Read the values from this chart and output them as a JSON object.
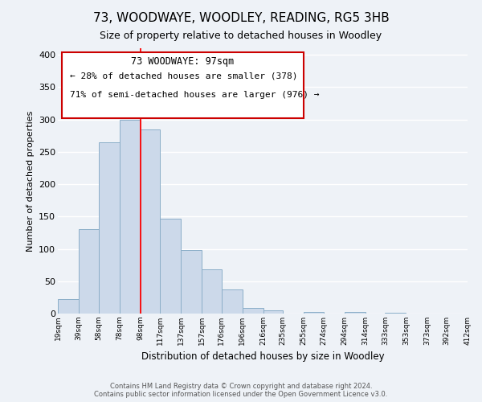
{
  "title": "73, WOODWAYE, WOODLEY, READING, RG5 3HB",
  "subtitle": "Size of property relative to detached houses in Woodley",
  "xlabel": "Distribution of detached houses by size in Woodley",
  "ylabel": "Number of detached properties",
  "bin_labels": [
    "19sqm",
    "39sqm",
    "58sqm",
    "78sqm",
    "98sqm",
    "117sqm",
    "137sqm",
    "157sqm",
    "176sqm",
    "196sqm",
    "216sqm",
    "235sqm",
    "255sqm",
    "274sqm",
    "294sqm",
    "314sqm",
    "333sqm",
    "353sqm",
    "373sqm",
    "392sqm",
    "412sqm"
  ],
  "bar_values": [
    22,
    130,
    265,
    300,
    285,
    147,
    98,
    68,
    37,
    9,
    5,
    0,
    3,
    0,
    2,
    0,
    1,
    0,
    0,
    0
  ],
  "bar_color": "#ccd9ea",
  "bar_edge_color": "#8baec8",
  "property_line_x": 98,
  "ylim": [
    0,
    410
  ],
  "yticks": [
    0,
    50,
    100,
    150,
    200,
    250,
    300,
    350,
    400
  ],
  "annotation_text_line1": "73 WOODWAYE: 97sqm",
  "annotation_text_line2": "← 28% of detached houses are smaller (378)",
  "annotation_text_line3": "71% of semi-detached houses are larger (976) →",
  "footer_line1": "Contains HM Land Registry data © Crown copyright and database right 2024.",
  "footer_line2": "Contains public sector information licensed under the Open Government Licence v3.0.",
  "background_color": "#eef2f7",
  "grid_color": "#ffffff",
  "title_fontsize": 11,
  "subtitle_fontsize": 9
}
